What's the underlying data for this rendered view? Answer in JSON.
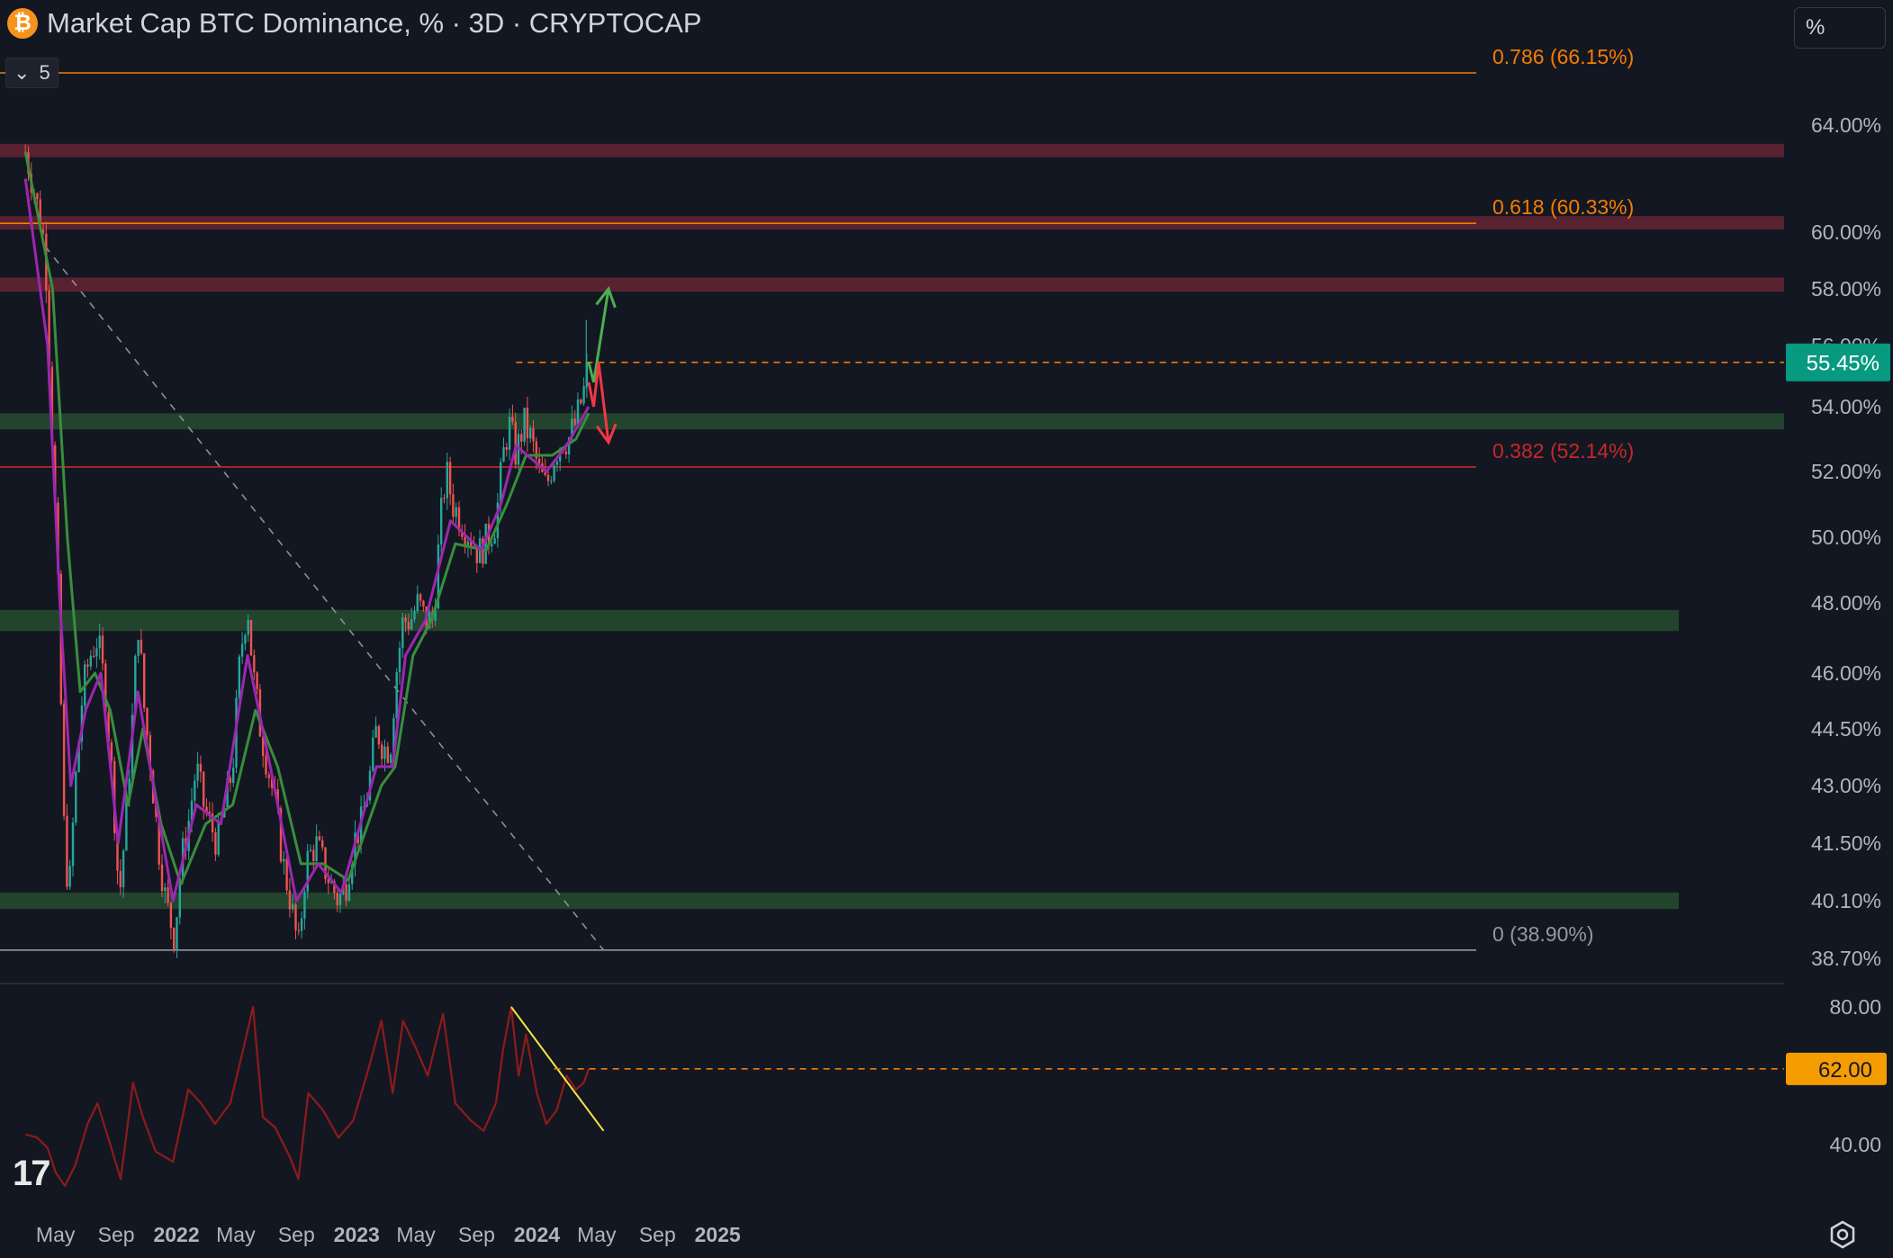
{
  "header": {
    "title": "Market Cap BTC Dominance, % · 3D · CRYPTOCAP",
    "icon": "bitcoin-icon",
    "indicator_count": "5",
    "scale_label": "%"
  },
  "colors": {
    "background": "#131722",
    "up": "#26a69a",
    "down": "#ef5350",
    "ema_fast": "#9c27b0",
    "ema_slow": "#388e3c",
    "fib": "#f57c00",
    "resistance_zone": "#5d2331",
    "support_zone": "#23472d",
    "rsi": "#8e1b1b",
    "trendline": "#f5e642"
  },
  "chart_data": [
    {
      "type": "candlestick",
      "title": "Market Cap BTC Dominance, % · 3D · CRYPTOCAP",
      "x_ticks": [
        "May",
        "Sep",
        "2022",
        "May",
        "Sep",
        "2023",
        "May",
        "Sep",
        "2024",
        "May",
        "Sep",
        "2025"
      ],
      "y_ticks": [
        "64.00%",
        "60.00%",
        "58.00%",
        "56.00%",
        "54.00%",
        "52.00%",
        "50.00%",
        "48.00%",
        "46.00%",
        "44.50%",
        "43.00%",
        "41.50%",
        "40.10%",
        "38.70%"
      ],
      "y_range": [
        38.7,
        66.15
      ],
      "last_value_label": "55.45%",
      "path": [
        {
          "x": "2021-03-01",
          "y": 63.0
        },
        {
          "x": "2021-03-20",
          "y": 61.5
        },
        {
          "x": "2021-04-10",
          "y": 59.5
        },
        {
          "x": "2021-04-22",
          "y": 54.0
        },
        {
          "x": "2021-05-05",
          "y": 49.0
        },
        {
          "x": "2021-05-18",
          "y": 42.0
        },
        {
          "x": "2021-05-28",
          "y": 40.1
        },
        {
          "x": "2021-06-10",
          "y": 43.0
        },
        {
          "x": "2021-06-25",
          "y": 45.5
        },
        {
          "x": "2021-07-10",
          "y": 46.5
        },
        {
          "x": "2021-07-25",
          "y": 47.0
        },
        {
          "x": "2021-08-10",
          "y": 45.5
        },
        {
          "x": "2021-08-25",
          "y": 43.0
        },
        {
          "x": "2021-09-07",
          "y": 40.1
        },
        {
          "x": "2021-09-20",
          "y": 42.0
        },
        {
          "x": "2021-10-05",
          "y": 45.0
        },
        {
          "x": "2021-10-15",
          "y": 47.5
        },
        {
          "x": "2021-10-28",
          "y": 45.0
        },
        {
          "x": "2021-11-10",
          "y": 43.5
        },
        {
          "x": "2021-11-25",
          "y": 41.5
        },
        {
          "x": "2021-12-10",
          "y": 40.1
        },
        {
          "x": "2021-12-28",
          "y": 39.2
        },
        {
          "x": "2022-01-10",
          "y": 41.0
        },
        {
          "x": "2022-01-25",
          "y": 42.0
        },
        {
          "x": "2022-02-10",
          "y": 43.5
        },
        {
          "x": "2022-02-25",
          "y": 42.5
        },
        {
          "x": "2022-03-10",
          "y": 42.0
        },
        {
          "x": "2022-03-25",
          "y": 41.5
        },
        {
          "x": "2022-04-10",
          "y": 42.5
        },
        {
          "x": "2022-04-25",
          "y": 43.5
        },
        {
          "x": "2022-05-10",
          "y": 46.5
        },
        {
          "x": "2022-05-25",
          "y": 48.0
        },
        {
          "x": "2022-06-05",
          "y": 46.0
        },
        {
          "x": "2022-06-20",
          "y": 44.5
        },
        {
          "x": "2022-07-05",
          "y": 43.5
        },
        {
          "x": "2022-07-20",
          "y": 42.5
        },
        {
          "x": "2022-08-05",
          "y": 41.0
        },
        {
          "x": "2022-08-20",
          "y": 40.1
        },
        {
          "x": "2022-09-05",
          "y": 38.9
        },
        {
          "x": "2022-09-20",
          "y": 41.0
        },
        {
          "x": "2022-10-10",
          "y": 41.5
        },
        {
          "x": "2022-10-25",
          "y": 41.0
        },
        {
          "x": "2022-11-10",
          "y": 40.5
        },
        {
          "x": "2022-11-25",
          "y": 40.1
        },
        {
          "x": "2022-12-10",
          "y": 40.5
        },
        {
          "x": "2022-12-25",
          "y": 41.5
        },
        {
          "x": "2023-01-10",
          "y": 42.0
        },
        {
          "x": "2023-01-25",
          "y": 43.0
        },
        {
          "x": "2023-02-10",
          "y": 44.5
        },
        {
          "x": "2023-02-25",
          "y": 44.0
        },
        {
          "x": "2023-03-10",
          "y": 44.0
        },
        {
          "x": "2023-03-22",
          "y": 46.0
        },
        {
          "x": "2023-04-05",
          "y": 47.5
        },
        {
          "x": "2023-04-20",
          "y": 47.5
        },
        {
          "x": "2023-05-05",
          "y": 48.0
        },
        {
          "x": "2023-05-20",
          "y": 47.5
        },
        {
          "x": "2023-06-05",
          "y": 47.5
        },
        {
          "x": "2023-06-20",
          "y": 50.5
        },
        {
          "x": "2023-07-01",
          "y": 52.0
        },
        {
          "x": "2023-07-15",
          "y": 51.0
        },
        {
          "x": "2023-08-01",
          "y": 50.5
        },
        {
          "x": "2023-08-20",
          "y": 50.0
        },
        {
          "x": "2023-09-05",
          "y": 49.5
        },
        {
          "x": "2023-09-25",
          "y": 50.0
        },
        {
          "x": "2023-10-10",
          "y": 50.5
        },
        {
          "x": "2023-10-25",
          "y": 52.5
        },
        {
          "x": "2023-11-05",
          "y": 53.5
        },
        {
          "x": "2023-11-20",
          "y": 52.5
        },
        {
          "x": "2023-12-05",
          "y": 53.5
        },
        {
          "x": "2023-12-20",
          "y": 53.0
        },
        {
          "x": "2024-01-05",
          "y": 52.0
        },
        {
          "x": "2024-01-20",
          "y": 51.5
        },
        {
          "x": "2024-02-05",
          "y": 52.5
        },
        {
          "x": "2024-02-20",
          "y": 53.0
        },
        {
          "x": "2024-03-05",
          "y": 53.0
        },
        {
          "x": "2024-03-20",
          "y": 53.5
        },
        {
          "x": "2024-04-05",
          "y": 54.5
        },
        {
          "x": "2024-04-15",
          "y": 55.45
        }
      ],
      "ema_fast": [
        {
          "x": "2021-03-01",
          "y": 62.0
        },
        {
          "x": "2021-04-15",
          "y": 56.0
        },
        {
          "x": "2021-05-10",
          "y": 48.0
        },
        {
          "x": "2021-06-01",
          "y": 43.0
        },
        {
          "x": "2021-07-01",
          "y": 45.0
        },
        {
          "x": "2021-08-01",
          "y": 46.0
        },
        {
          "x": "2021-09-05",
          "y": 41.5
        },
        {
          "x": "2021-10-15",
          "y": 45.5
        },
        {
          "x": "2021-11-15",
          "y": 43.0
        },
        {
          "x": "2021-12-25",
          "y": 40.1
        },
        {
          "x": "2022-02-10",
          "y": 42.5
        },
        {
          "x": "2022-04-01",
          "y": 42.0
        },
        {
          "x": "2022-05-25",
          "y": 46.5
        },
        {
          "x": "2022-07-10",
          "y": 43.5
        },
        {
          "x": "2022-09-01",
          "y": 40.1
        },
        {
          "x": "2022-10-15",
          "y": 41.0
        },
        {
          "x": "2022-12-01",
          "y": 40.3
        },
        {
          "x": "2023-02-10",
          "y": 43.5
        },
        {
          "x": "2023-03-15",
          "y": 43.5
        },
        {
          "x": "2023-04-10",
          "y": 46.5
        },
        {
          "x": "2023-05-20",
          "y": 47.5
        },
        {
          "x": "2023-07-10",
          "y": 50.5
        },
        {
          "x": "2023-09-10",
          "y": 49.6
        },
        {
          "x": "2023-10-20",
          "y": 51.0
        },
        {
          "x": "2023-11-20",
          "y": 52.8
        },
        {
          "x": "2024-01-20",
          "y": 52.0
        },
        {
          "x": "2024-03-01",
          "y": 52.8
        },
        {
          "x": "2024-04-15",
          "y": 54.0
        }
      ],
      "ema_slow": [
        {
          "x": "2021-03-01",
          "y": 63.0
        },
        {
          "x": "2021-04-25",
          "y": 58.0
        },
        {
          "x": "2021-05-25",
          "y": 50.0
        },
        {
          "x": "2021-06-20",
          "y": 45.5
        },
        {
          "x": "2021-07-20",
          "y": 46.0
        },
        {
          "x": "2021-08-20",
          "y": 45.0
        },
        {
          "x": "2021-09-25",
          "y": 42.5
        },
        {
          "x": "2021-10-25",
          "y": 44.5
        },
        {
          "x": "2021-12-01",
          "y": 42.0
        },
        {
          "x": "2022-01-10",
          "y": 40.5
        },
        {
          "x": "2022-03-01",
          "y": 42.0
        },
        {
          "x": "2022-04-25",
          "y": 42.5
        },
        {
          "x": "2022-06-10",
          "y": 45.0
        },
        {
          "x": "2022-07-25",
          "y": 43.5
        },
        {
          "x": "2022-09-10",
          "y": 41.0
        },
        {
          "x": "2022-10-25",
          "y": 41.0
        },
        {
          "x": "2022-12-15",
          "y": 40.6
        },
        {
          "x": "2023-02-20",
          "y": 43.0
        },
        {
          "x": "2023-03-20",
          "y": 43.5
        },
        {
          "x": "2023-04-25",
          "y": 46.5
        },
        {
          "x": "2023-06-01",
          "y": 47.5
        },
        {
          "x": "2023-07-20",
          "y": 49.8
        },
        {
          "x": "2023-09-20",
          "y": 49.6
        },
        {
          "x": "2023-11-01",
          "y": 51.0
        },
        {
          "x": "2023-12-10",
          "y": 52.5
        },
        {
          "x": "2024-02-01",
          "y": 52.5
        },
        {
          "x": "2024-03-20",
          "y": 53.0
        },
        {
          "x": "2024-04-15",
          "y": 53.8
        }
      ],
      "fib_levels": [
        {
          "label": "0.786 (66.15%)",
          "value": 66.15
        },
        {
          "label": "0.618 (60.33%)",
          "value": 60.33
        },
        {
          "label": "0.382 (52.14%)",
          "value": 52.14
        },
        {
          "label": "0 (38.90%)",
          "value": 38.9
        }
      ],
      "zones": [
        {
          "kind": "resistance",
          "low": 62.8,
          "high": 63.3
        },
        {
          "kind": "resistance",
          "low": 60.1,
          "high": 60.6
        },
        {
          "kind": "resistance",
          "low": 57.9,
          "high": 58.4
        },
        {
          "kind": "support",
          "low": 53.3,
          "high": 53.8
        },
        {
          "kind": "support",
          "low": 47.2,
          "high": 47.8
        },
        {
          "kind": "support",
          "low": 39.9,
          "high": 40.3
        }
      ],
      "breakout_level": 55.45,
      "descending_trendline": [
        {
          "x": "2021-04-10",
          "y": 59.5
        },
        {
          "x": "2024-05-15",
          "y": 38.9
        }
      ],
      "scenario_up": [
        {
          "x": "2024-04-15",
          "y": 55.45
        },
        {
          "x": "2024-04-25",
          "y": 54.8
        },
        {
          "x": "2024-05-25",
          "y": 58.0
        }
      ],
      "scenario_down": [
        {
          "x": "2024-04-15",
          "y": 54.8
        },
        {
          "x": "2024-04-25",
          "y": 54.0
        },
        {
          "x": "2024-05-05",
          "y": 55.45
        },
        {
          "x": "2024-05-25",
          "y": 52.9
        }
      ]
    },
    {
      "type": "line",
      "title": "",
      "y_ticks": [
        "80.00",
        "40.00"
      ],
      "y_range": [
        28,
        84
      ],
      "last_value_label": "62.00",
      "level": 62,
      "values": [
        {
          "x": "2021-03-01",
          "y": 43
        },
        {
          "x": "2021-03-25",
          "y": 42
        },
        {
          "x": "2021-04-15",
          "y": 39
        },
        {
          "x": "2021-05-01",
          "y": 32
        },
        {
          "x": "2021-05-20",
          "y": 28
        },
        {
          "x": "2021-06-10",
          "y": 34
        },
        {
          "x": "2021-07-05",
          "y": 46
        },
        {
          "x": "2021-07-25",
          "y": 52
        },
        {
          "x": "2021-08-20",
          "y": 40
        },
        {
          "x": "2021-09-10",
          "y": 30
        },
        {
          "x": "2021-10-05",
          "y": 58
        },
        {
          "x": "2021-10-25",
          "y": 48
        },
        {
          "x": "2021-11-20",
          "y": 38
        },
        {
          "x": "2021-12-25",
          "y": 35
        },
        {
          "x": "2022-01-25",
          "y": 56
        },
        {
          "x": "2022-02-20",
          "y": 52
        },
        {
          "x": "2022-03-20",
          "y": 46
        },
        {
          "x": "2022-04-20",
          "y": 52
        },
        {
          "x": "2022-05-20",
          "y": 70
        },
        {
          "x": "2022-06-05",
          "y": 80
        },
        {
          "x": "2022-06-25",
          "y": 48
        },
        {
          "x": "2022-07-20",
          "y": 45
        },
        {
          "x": "2022-08-20",
          "y": 36
        },
        {
          "x": "2022-09-05",
          "y": 30
        },
        {
          "x": "2022-09-25",
          "y": 55
        },
        {
          "x": "2022-10-25",
          "y": 50
        },
        {
          "x": "2022-11-25",
          "y": 42
        },
        {
          "x": "2022-12-25",
          "y": 47
        },
        {
          "x": "2023-01-25",
          "y": 62
        },
        {
          "x": "2023-02-20",
          "y": 76
        },
        {
          "x": "2023-03-15",
          "y": 55
        },
        {
          "x": "2023-04-05",
          "y": 76
        },
        {
          "x": "2023-05-01",
          "y": 68
        },
        {
          "x": "2023-05-25",
          "y": 60
        },
        {
          "x": "2023-06-25",
          "y": 78
        },
        {
          "x": "2023-07-20",
          "y": 52
        },
        {
          "x": "2023-08-20",
          "y": 47
        },
        {
          "x": "2023-09-15",
          "y": 44
        },
        {
          "x": "2023-10-10",
          "y": 52
        },
        {
          "x": "2023-10-25",
          "y": 68
        },
        {
          "x": "2023-11-10",
          "y": 80
        },
        {
          "x": "2023-11-25",
          "y": 60
        },
        {
          "x": "2023-12-10",
          "y": 72
        },
        {
          "x": "2024-01-01",
          "y": 55
        },
        {
          "x": "2024-01-20",
          "y": 46
        },
        {
          "x": "2024-02-10",
          "y": 50
        },
        {
          "x": "2024-03-01",
          "y": 60
        },
        {
          "x": "2024-03-20",
          "y": 56
        },
        {
          "x": "2024-04-05",
          "y": 58
        },
        {
          "x": "2024-04-15",
          "y": 62
        }
      ],
      "trendline": [
        {
          "x": "2023-11-10",
          "y": 80
        },
        {
          "x": "2024-05-15",
          "y": 44
        }
      ]
    }
  ]
}
